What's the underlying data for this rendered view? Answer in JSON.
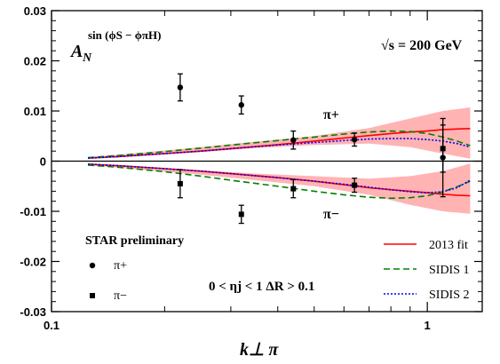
{
  "chart_data": {
    "type": "line",
    "xscale": "log",
    "xlim": [
      0.1,
      1.4
    ],
    "ylim": [
      -0.03,
      0.03
    ],
    "xlabel": "k⊥ π",
    "x_ticks": [
      {
        "value": 0.1,
        "label": "0.1"
      },
      {
        "value": 1,
        "label": "1"
      }
    ],
    "y_ticks": [
      {
        "value": 0.03,
        "label": "0.03"
      },
      {
        "value": 0.02,
        "label": "0.02"
      },
      {
        "value": 0.01,
        "label": "0.01"
      },
      {
        "value": 0,
        "label": "0"
      },
      {
        "value": -0.01,
        "label": "-0.01"
      },
      {
        "value": -0.02,
        "label": "-0.02"
      },
      {
        "value": -0.03,
        "label": "-0.03"
      }
    ],
    "ylabel_main": "A",
    "ylabel_sub": "N",
    "ylabel_sup": "sin (ϕS − ϕπH)",
    "energy_label": "√s = 200 GeV",
    "collaboration_label": "STAR preliminary",
    "cuts_label": "0 < ηj < 1    ΔR > 0.1",
    "curve_labels": {
      "pi_plus": "π+",
      "pi_minus": "π−"
    },
    "legend": [
      {
        "name": "2013 fit",
        "color": "#ff0000",
        "dash": "solid"
      },
      {
        "name": "SIDIS 1",
        "color": "#008000",
        "dash": "dashed"
      },
      {
        "name": "SIDIS 2",
        "color": "#0000ff",
        "dash": "dotted"
      }
    ],
    "marker_legend": [
      {
        "name": "π+",
        "marker": "circle"
      },
      {
        "name": "π−",
        "marker": "square"
      }
    ],
    "band_color": "#ffb3b3",
    "band": {
      "pi_plus": {
        "x": [
          0.125,
          0.18,
          0.25,
          0.35,
          0.5,
          0.7,
          0.9,
          1.1,
          1.3
        ],
        "upper": [
          0.0008,
          0.0018,
          0.0028,
          0.0039,
          0.005,
          0.0066,
          0.0085,
          0.01,
          0.0107
        ],
        "lower": [
          0.0004,
          0.0011,
          0.0018,
          0.0026,
          0.0032,
          0.0035,
          0.0028,
          0.0015,
          0.0005
        ]
      },
      "pi_minus": {
        "x": [
          0.125,
          0.18,
          0.25,
          0.35,
          0.5,
          0.7,
          0.9,
          1.1,
          1.3
        ],
        "upper": [
          -0.0004,
          -0.0011,
          -0.0018,
          -0.0025,
          -0.003,
          -0.0035,
          -0.003,
          -0.002,
          -0.0005
        ],
        "lower": [
          -0.0008,
          -0.0018,
          -0.0027,
          -0.0038,
          -0.005,
          -0.0067,
          -0.0087,
          -0.01,
          -0.0105
        ]
      }
    },
    "series": [
      {
        "name": "2013 fit",
        "curve": "pi_plus",
        "x": [
          0.125,
          0.15,
          0.2,
          0.25,
          0.3,
          0.4,
          0.5,
          0.6,
          0.7,
          0.8,
          0.9,
          1.0,
          1.1,
          1.2,
          1.3
        ],
        "y": [
          0.0006,
          0.0009,
          0.0015,
          0.002,
          0.0025,
          0.0033,
          0.004,
          0.0046,
          0.0051,
          0.0055,
          0.0058,
          0.006,
          0.0063,
          0.0064,
          0.0065
        ]
      },
      {
        "name": "SIDIS 1",
        "curve": "pi_plus",
        "x": [
          0.125,
          0.15,
          0.2,
          0.25,
          0.3,
          0.4,
          0.5,
          0.6,
          0.7,
          0.8,
          0.9,
          1.0,
          1.1,
          1.2,
          1.3
        ],
        "y": [
          0.0007,
          0.0011,
          0.0019,
          0.0026,
          0.0032,
          0.0041,
          0.0048,
          0.0054,
          0.0058,
          0.006,
          0.0059,
          0.0055,
          0.0048,
          0.004,
          0.0031
        ]
      },
      {
        "name": "SIDIS 2",
        "curve": "pi_plus",
        "x": [
          0.125,
          0.15,
          0.2,
          0.25,
          0.3,
          0.4,
          0.5,
          0.6,
          0.7,
          0.8,
          0.9,
          1.0,
          1.1,
          1.2,
          1.3
        ],
        "y": [
          0.0006,
          0.0009,
          0.0015,
          0.002,
          0.0025,
          0.0032,
          0.0037,
          0.0041,
          0.0044,
          0.0045,
          0.0045,
          0.0043,
          0.004,
          0.0035,
          0.0028
        ]
      },
      {
        "name": "2013 fit",
        "curve": "pi_minus",
        "x": [
          0.125,
          0.15,
          0.2,
          0.25,
          0.3,
          0.4,
          0.5,
          0.6,
          0.7,
          0.8,
          0.9,
          1.0,
          1.1,
          1.2,
          1.3
        ],
        "y": [
          -0.0006,
          -0.0009,
          -0.0015,
          -0.002,
          -0.0025,
          -0.0033,
          -0.004,
          -0.0047,
          -0.0053,
          -0.0057,
          -0.006,
          -0.0063,
          -0.0066,
          -0.0068,
          -0.0069
        ]
      },
      {
        "name": "SIDIS 1",
        "curve": "pi_minus",
        "x": [
          0.125,
          0.15,
          0.2,
          0.25,
          0.3,
          0.4,
          0.5,
          0.6,
          0.7,
          0.8,
          0.9,
          1.0,
          1.1,
          1.2,
          1.3
        ],
        "y": [
          -0.0008,
          -0.0012,
          -0.0021,
          -0.003,
          -0.0038,
          -0.005,
          -0.006,
          -0.0067,
          -0.0072,
          -0.0074,
          -0.0073,
          -0.0069,
          -0.0061,
          -0.0051,
          -0.004
        ]
      },
      {
        "name": "SIDIS 2",
        "curve": "pi_minus",
        "x": [
          0.125,
          0.15,
          0.2,
          0.25,
          0.3,
          0.4,
          0.5,
          0.6,
          0.7,
          0.8,
          0.9,
          1.0,
          1.1,
          1.2,
          1.3
        ],
        "y": [
          -0.0006,
          -0.0009,
          -0.0015,
          -0.002,
          -0.0025,
          -0.0033,
          -0.004,
          -0.0046,
          -0.0052,
          -0.0057,
          -0.0061,
          -0.0063,
          -0.0061,
          -0.0053,
          -0.0038
        ]
      }
    ],
    "data_points": [
      {
        "set": "pi_plus",
        "marker": "circle",
        "x": 0.22,
        "y": 0.0147,
        "err": 0.0027
      },
      {
        "set": "pi_plus",
        "marker": "circle",
        "x": 0.32,
        "y": 0.0112,
        "err": 0.0018
      },
      {
        "set": "pi_plus",
        "marker": "circle",
        "x": 0.44,
        "y": 0.0042,
        "err": 0.0018
      },
      {
        "set": "pi_plus",
        "marker": "circle",
        "x": 0.64,
        "y": 0.0043,
        "err": 0.0013
      },
      {
        "set": "pi_plus",
        "marker": "circle",
        "x": 1.1,
        "y": 0.0007,
        "err": 0.0078
      },
      {
        "set": "pi_minus",
        "marker": "square",
        "x": 0.22,
        "y": -0.0045,
        "err": 0.0028
      },
      {
        "set": "pi_minus",
        "marker": "square",
        "x": 0.32,
        "y": -0.0106,
        "err": 0.0018
      },
      {
        "set": "pi_minus",
        "marker": "square",
        "x": 0.44,
        "y": -0.0055,
        "err": 0.0018
      },
      {
        "set": "pi_minus",
        "marker": "square",
        "x": 0.64,
        "y": -0.0048,
        "err": 0.0014
      },
      {
        "set": "pi_minus",
        "marker": "square",
        "x": 1.1,
        "y": 0.0025,
        "err": 0.0047
      }
    ]
  }
}
